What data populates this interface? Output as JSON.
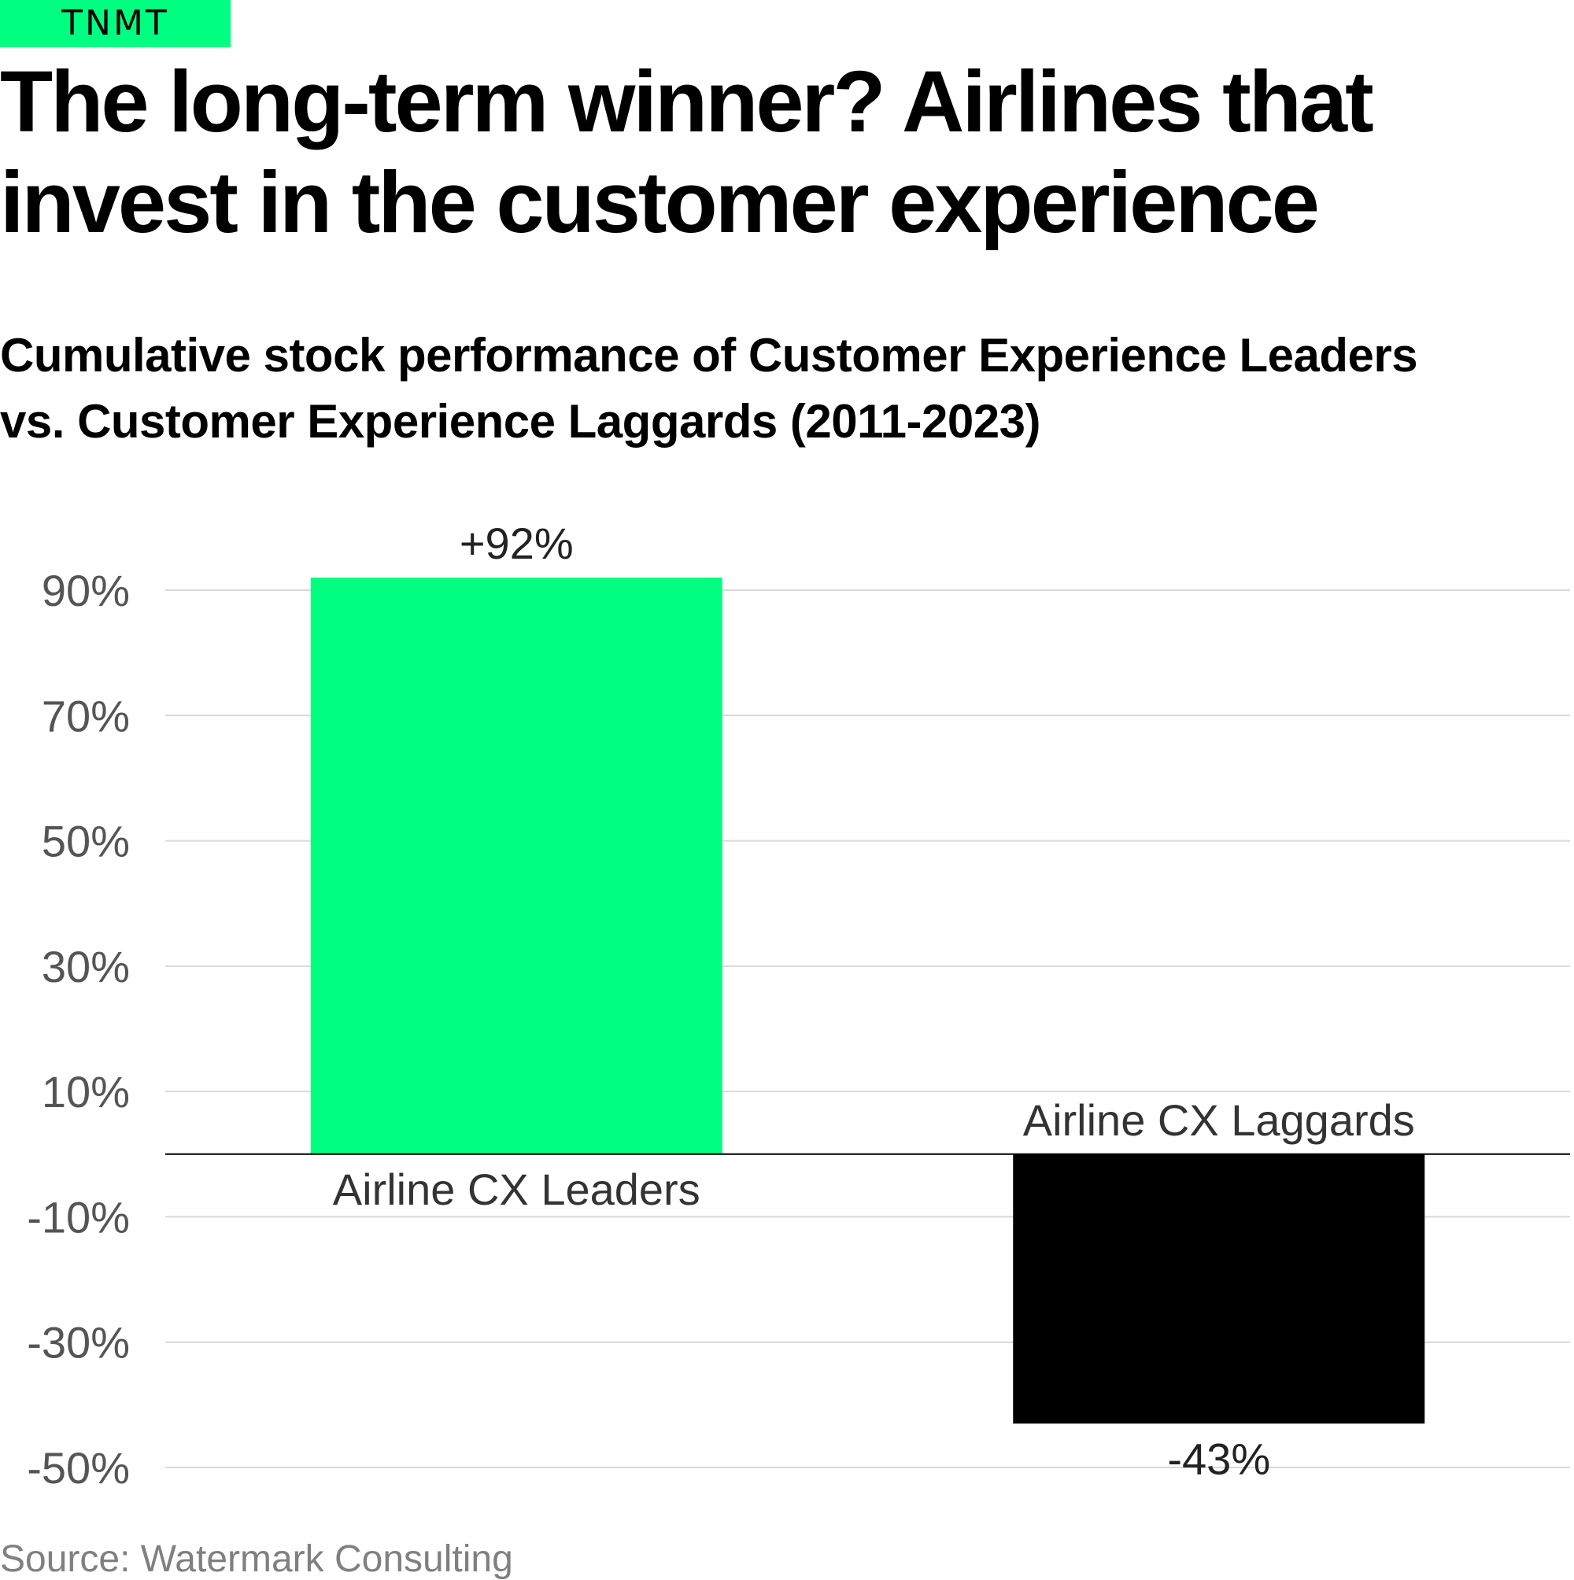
{
  "brand": {
    "label": "TNMT",
    "color": "#00ff80"
  },
  "headline": {
    "line1": "The long-term winner? Airlines that",
    "line2": "invest in the customer experience"
  },
  "subtitle": {
    "line1": "Cumulative stock performance of Customer Experience Leaders",
    "line2": "vs. Customer Experience Laggards (2011-2023)"
  },
  "chart_data": {
    "type": "bar",
    "title": "Cumulative stock performance of Customer Experience Leaders vs. Customer Experience Laggards (2011-2023)",
    "categories": [
      "Airline CX Leaders",
      "Airline CX Laggards"
    ],
    "values": [
      92,
      -43
    ],
    "value_labels": [
      "+92%",
      "-43%"
    ],
    "colors": [
      "#00ff80",
      "#000000"
    ],
    "unit": "%",
    "ylim": [
      -50,
      90
    ],
    "yticks": [
      90,
      70,
      50,
      30,
      10,
      -10,
      -30,
      -50
    ],
    "ytick_labels": [
      "90%",
      "70%",
      "50%",
      "30%",
      "10%",
      "-10%",
      "-30%",
      "-50%"
    ],
    "xlabel": "",
    "ylabel": "",
    "grid": true,
    "zero_line": true
  },
  "source": "Source: Watermark Consulting"
}
